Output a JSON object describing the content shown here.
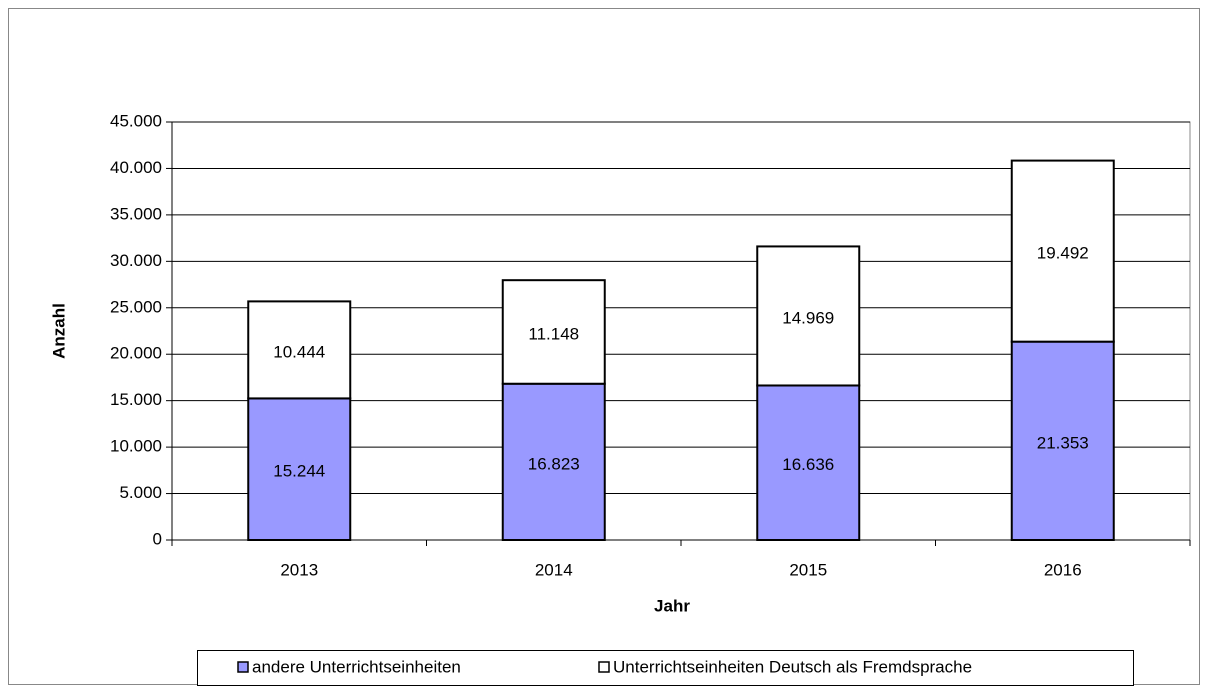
{
  "chart_data": {
    "type": "stacked_bar",
    "categories": [
      "2013",
      "2014",
      "2015",
      "2016"
    ],
    "series": [
      {
        "name": "andere Unterrichtseinheiten",
        "color": "#9999ff",
        "values": [
          15244,
          16823,
          16636,
          21353
        ],
        "value_labels": [
          "15.244",
          "16.823",
          "16.636",
          "21.353"
        ]
      },
      {
        "name": "Unterrichtseinheiten Deutsch als Fremdsprache",
        "color": "#ffffff",
        "values": [
          10444,
          11148,
          14969,
          19492
        ],
        "value_labels": [
          "10.444",
          "11.148",
          "14.969",
          "19.492"
        ]
      }
    ],
    "xlabel": "Jahr",
    "ylabel": "Anzahl",
    "ylim": [
      0,
      45000
    ],
    "yticks": [
      0,
      {
        "value": 5000,
        "label": "5.000"
      },
      {
        "value": 10000,
        "label": "10.000"
      },
      {
        "value": 15000,
        "label": "15.000"
      },
      {
        "value": 20000,
        "label": "20.000"
      },
      {
        "value": 25000,
        "label": "25.000"
      },
      {
        "value": 30000,
        "label": "30.000"
      },
      {
        "value": 35000,
        "label": "35.000"
      },
      {
        "value": 40000,
        "label": "40.000"
      },
      {
        "value": 45000,
        "label": "45.000"
      }
    ],
    "grid": true,
    "legend": "bottom"
  }
}
